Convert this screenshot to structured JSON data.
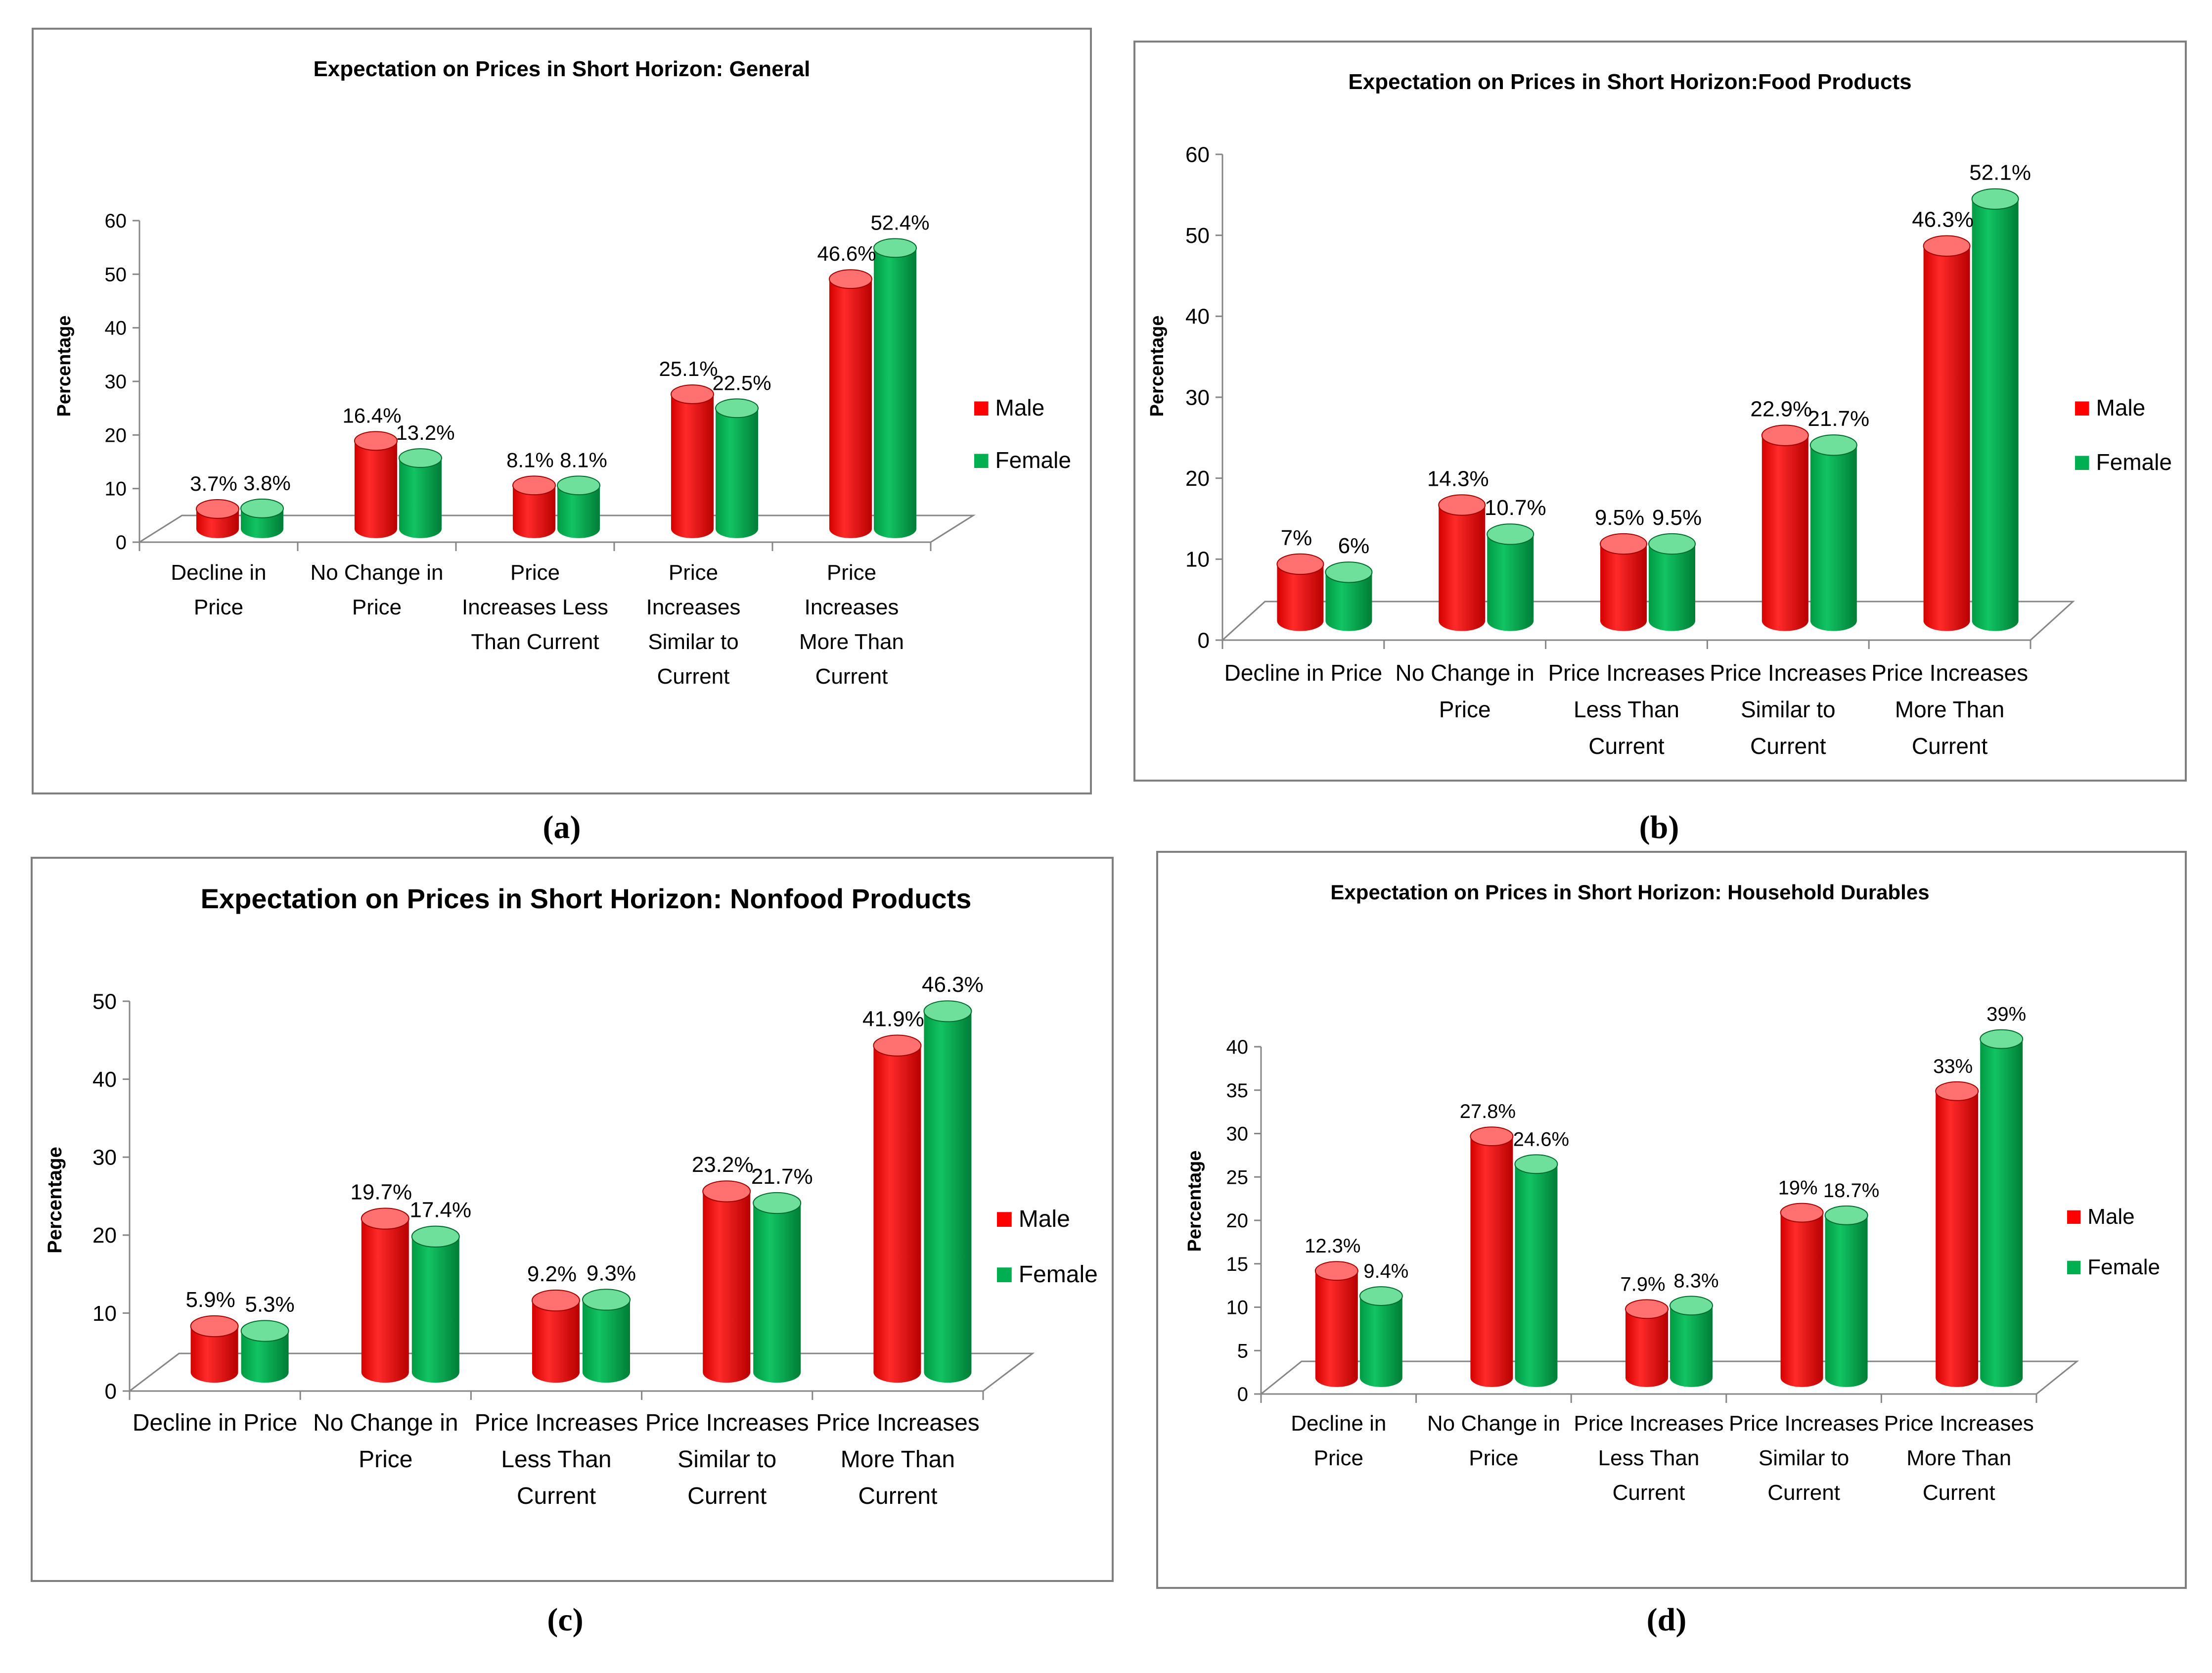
{
  "colors": {
    "male_front": "#ff0000",
    "male_dark": "#a30000",
    "male_light": "#ff7070",
    "female_front": "#00b050",
    "female_dark": "#006b2e",
    "female_light": "#6fe09c",
    "axis": "#868686",
    "frame": "#7f7f7f"
  },
  "legend": {
    "male": "Male",
    "female": "Female"
  },
  "chart_data": [
    {
      "type": "bar",
      "panel_label": "(a)",
      "title": "Expectation on Prices in Short Horizon: General",
      "ylabel": "Percentage",
      "ylim": [
        0,
        60
      ],
      "yticks": [
        "0",
        "10",
        "20",
        "30",
        "40",
        "50",
        "60"
      ],
      "categories": [
        [
          "Decline in",
          "Price"
        ],
        [
          "No Change in",
          "Price"
        ],
        [
          "Price",
          "Increases Less",
          "Than Current"
        ],
        [
          "Price",
          "Increases",
          "Similar to",
          "Current"
        ],
        [
          "Price",
          "Increases",
          "More Than",
          "Current"
        ]
      ],
      "series": [
        {
          "name": "Male",
          "values": [
            3.7,
            16.4,
            8.1,
            25.1,
            46.6
          ],
          "labels": [
            "3.7%",
            "16.4%",
            "8.1%",
            "25.1%",
            "46.6%"
          ]
        },
        {
          "name": "Female",
          "values": [
            3.8,
            13.2,
            8.1,
            22.5,
            52.4
          ],
          "labels": [
            "3.8%",
            "13.2%",
            "8.1%",
            "22.5%",
            "52.4%"
          ]
        }
      ]
    },
    {
      "type": "bar",
      "panel_label": "(b)",
      "title": "Expectation on Prices in Short Horizon:Food Products",
      "ylabel": "Percentage",
      "ylim": [
        0,
        60
      ],
      "yticks": [
        "0",
        "10",
        "20",
        "30",
        "40",
        "50",
        "60"
      ],
      "categories": [
        [
          "Decline in Price"
        ],
        [
          "No Change in",
          "Price"
        ],
        [
          "Price Increases",
          "Less Than",
          "Current"
        ],
        [
          "Price Increases",
          "Similar to",
          "Current"
        ],
        [
          "Price Increases",
          "More Than",
          "Current"
        ]
      ],
      "series": [
        {
          "name": "Male",
          "values": [
            7,
            14.3,
            9.5,
            22.9,
            46.3
          ],
          "labels": [
            "7%",
            "14.3%",
            "9.5%",
            "22.9%",
            "46.3%"
          ]
        },
        {
          "name": "Female",
          "values": [
            6,
            10.7,
            9.5,
            21.7,
            52.1
          ],
          "labels": [
            "6%",
            "10.7%",
            "9.5%",
            "21.7%",
            "52.1%"
          ]
        }
      ]
    },
    {
      "type": "bar",
      "panel_label": "(c)",
      "title": "Expectation on Prices in Short Horizon: Nonfood Products",
      "ylabel": "Percentage",
      "ylim": [
        0,
        50
      ],
      "yticks": [
        "0",
        "10",
        "20",
        "30",
        "40",
        "50"
      ],
      "categories": [
        [
          "Decline in Price"
        ],
        [
          "No Change in",
          "Price"
        ],
        [
          "Price Increases",
          "Less Than",
          "Current"
        ],
        [
          "Price Increases",
          "Similar to",
          "Current"
        ],
        [
          "Price Increases",
          "More Than",
          "Current"
        ]
      ],
      "series": [
        {
          "name": "Male",
          "values": [
            5.9,
            19.7,
            9.2,
            23.2,
            41.9
          ],
          "labels": [
            "5.9%",
            "19.7%",
            "9.2%",
            "23.2%",
            "41.9%"
          ]
        },
        {
          "name": "Female",
          "values": [
            5.3,
            17.4,
            9.3,
            21.7,
            46.3
          ],
          "labels": [
            "5.3%",
            "17.4%",
            "9.3%",
            "21.7%",
            "46.3%"
          ]
        }
      ]
    },
    {
      "type": "bar",
      "panel_label": "(d)",
      "title": "Expectation on Prices in Short Horizon: Household Durables",
      "ylabel": "Percentage",
      "ylim": [
        0,
        40
      ],
      "yticks": [
        "0",
        "5",
        "10",
        "15",
        "20",
        "25",
        "30",
        "35",
        "40"
      ],
      "categories": [
        [
          "Decline in",
          "Price"
        ],
        [
          "No Change in",
          "Price"
        ],
        [
          "Price Increases",
          "Less Than",
          "Current"
        ],
        [
          "Price Increases",
          "Similar to",
          "Current"
        ],
        [
          "Price Increases",
          "More Than",
          "Current"
        ]
      ],
      "series": [
        {
          "name": "Male",
          "values": [
            12.3,
            27.8,
            7.9,
            19,
            33
          ],
          "labels": [
            "12.3%",
            "27.8%",
            "7.9%",
            "19%",
            "33%"
          ]
        },
        {
          "name": "Female",
          "values": [
            9.4,
            24.6,
            8.3,
            18.7,
            39
          ],
          "labels": [
            "9.4%",
            "24.6%",
            "8.3%",
            "18.7%",
            "39%"
          ]
        }
      ]
    }
  ]
}
